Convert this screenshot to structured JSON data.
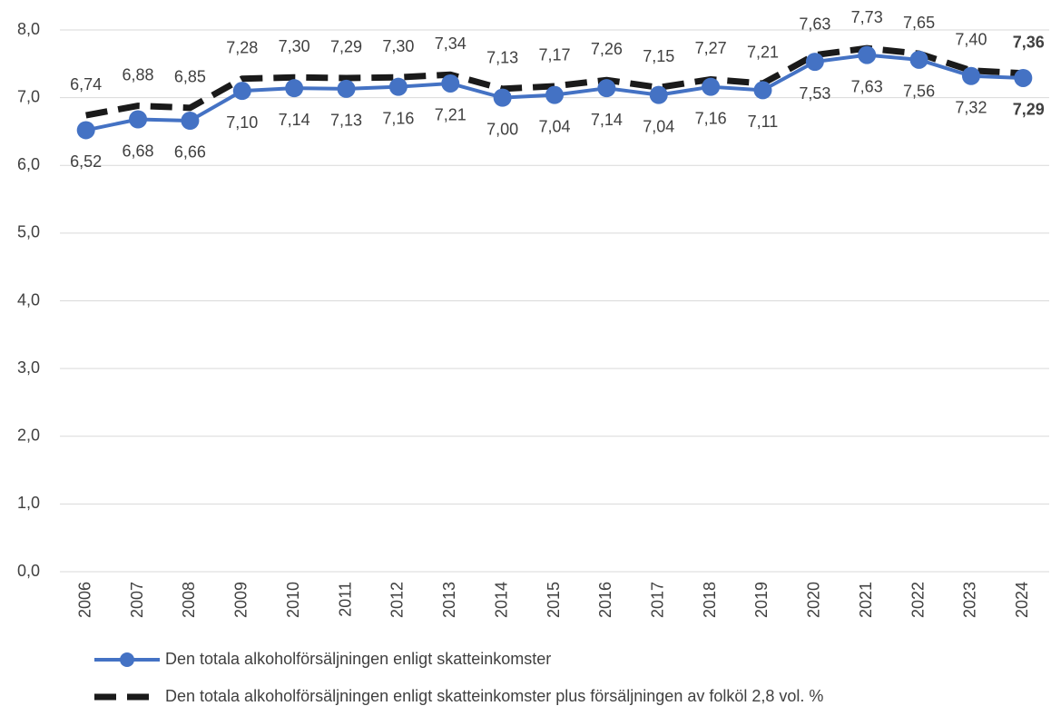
{
  "chart_data": {
    "type": "line",
    "categories": [
      "2006",
      "2007",
      "2008",
      "2009",
      "2010",
      "2011",
      "2012",
      "2013",
      "2014",
      "2015",
      "2016",
      "2017",
      "2018",
      "2019",
      "2020",
      "2021",
      "2022",
      "2023",
      "2024"
    ],
    "series": [
      {
        "name": "Den totala alkoholförsäljningen enligt skatteinkomster",
        "color": "#4472c4",
        "style": "solid",
        "marker": true,
        "values": [
          6.52,
          6.68,
          6.66,
          7.1,
          7.14,
          7.13,
          7.16,
          7.21,
          7.0,
          7.04,
          7.14,
          7.04,
          7.16,
          7.11,
          7.53,
          7.63,
          7.56,
          7.32,
          7.29
        ],
        "value_labels": [
          "6,52",
          "6,68",
          "6,66",
          "7,10",
          "7,14",
          "7,13",
          "7,16",
          "7,21",
          "7,00",
          "7,04",
          "7,14",
          "7,04",
          "7,16",
          "7,11",
          "7,53",
          "7,63",
          "7,56",
          "7,32",
          "7,29"
        ]
      },
      {
        "name": "Den totala alkoholförsäljningen enligt skatteinkomster plus försäljningen av folköl 2,8 vol. %",
        "color": "#1a1a1a",
        "style": "dashed",
        "marker": false,
        "values": [
          6.74,
          6.88,
          6.85,
          7.28,
          7.3,
          7.29,
          7.3,
          7.34,
          7.13,
          7.17,
          7.26,
          7.15,
          7.27,
          7.21,
          7.63,
          7.73,
          7.65,
          7.4,
          7.36
        ],
        "value_labels": [
          "6,74",
          "6,88",
          "6,85",
          "7,28",
          "7,30",
          "7,29",
          "7,30",
          "7,34",
          "7,13",
          "7,17",
          "7,26",
          "7,15",
          "7,27",
          "7,21",
          "7,63",
          "7,73",
          "7,65",
          "7,40",
          "7,36"
        ]
      }
    ],
    "ylim": [
      0,
      8
    ],
    "yticks": [
      {
        "value": 0,
        "label": "0,0"
      },
      {
        "value": 1,
        "label": "1,0"
      },
      {
        "value": 2,
        "label": "2,0"
      },
      {
        "value": 3,
        "label": "3,0"
      },
      {
        "value": 4,
        "label": "4,0"
      },
      {
        "value": 5,
        "label": "5,0"
      },
      {
        "value": 6,
        "label": "6,0"
      },
      {
        "value": 7,
        "label": "7,0"
      },
      {
        "value": 8,
        "label": "8,0"
      }
    ],
    "grid": true
  }
}
